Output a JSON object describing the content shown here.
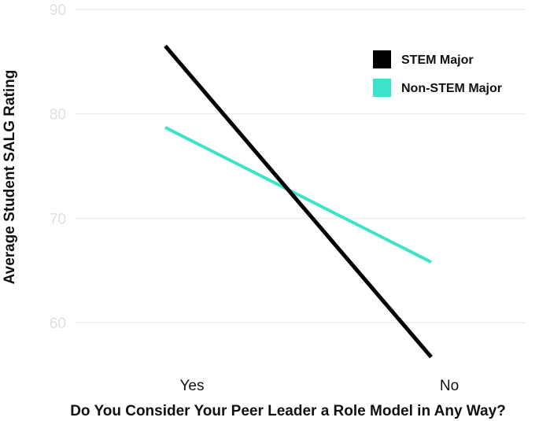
{
  "chart_data": {
    "type": "line",
    "title": "",
    "xlabel": "Do You Consider Your Peer Leader a Role Model in Any Way?",
    "ylabel": "Average Student SALG Rating",
    "categories": [
      "Yes",
      "No"
    ],
    "ylim": [
      55,
      90
    ],
    "yticks": [
      60,
      70,
      80,
      90
    ],
    "grid": true,
    "legend_position": "top-right",
    "series": [
      {
        "name": "STEM Major",
        "color": "#000000",
        "values": [
          86.5,
          56.7
        ]
      },
      {
        "name": "Non-STEM Major",
        "color": "#3de3c8",
        "values": [
          78.7,
          65.8
        ]
      }
    ]
  }
}
